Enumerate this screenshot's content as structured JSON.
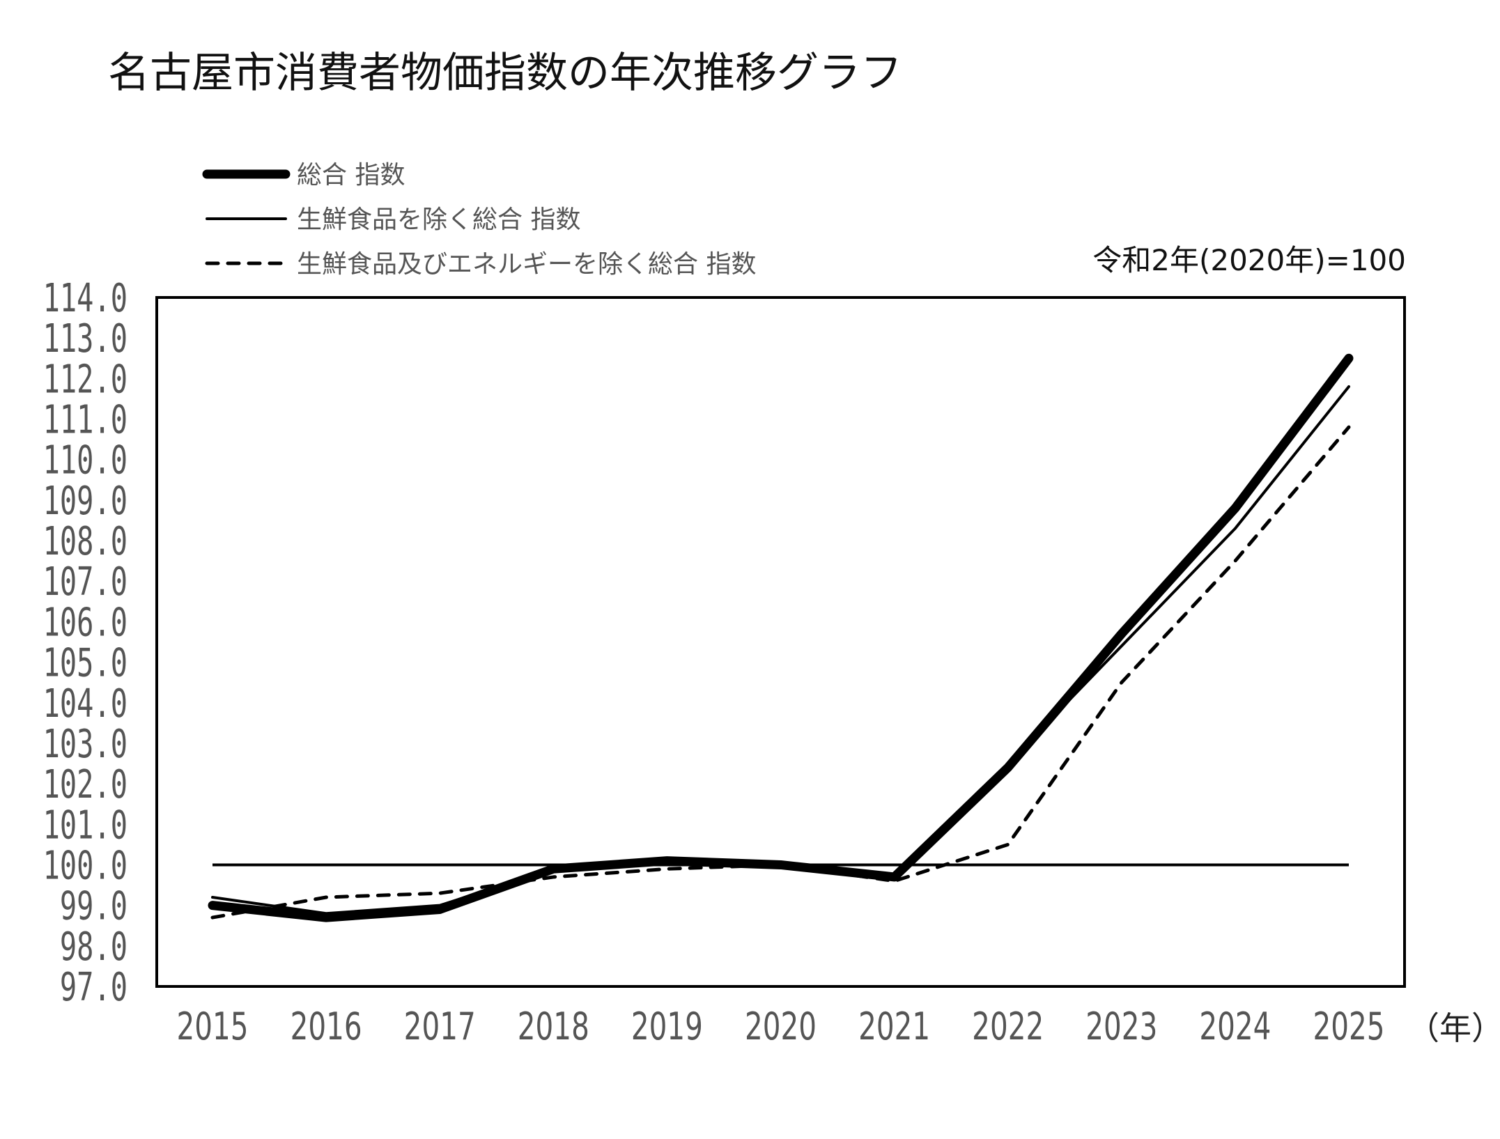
{
  "chart_data": {
    "type": "line",
    "title": "名古屋市消費者物価指数の年次推移グラフ",
    "annotation": "令和2年(2020年)=100",
    "xlabel": "（年）",
    "ylabel": "",
    "categories": [
      "2015",
      "2016",
      "2017",
      "2018",
      "2019",
      "2020",
      "2021",
      "2022",
      "2023",
      "2024",
      "2025"
    ],
    "ylim": [
      97.0,
      114.0
    ],
    "yticks": [
      "114.0",
      "113.0",
      "112.0",
      "111.0",
      "110.0",
      "109.0",
      "108.0",
      "107.0",
      "106.0",
      "105.0",
      "104.0",
      "103.0",
      "102.0",
      "101.0",
      "100.0",
      "99.0",
      "98.0",
      "97.0"
    ],
    "reference_line": 100.0,
    "grid": false,
    "legend_position": "top-left",
    "series": [
      {
        "name": "総合 指数",
        "style": "thick-solid",
        "color": "#000000",
        "values": [
          99.0,
          98.7,
          98.9,
          99.9,
          100.1,
          100.0,
          99.7,
          102.4,
          105.7,
          108.8,
          112.5
        ]
      },
      {
        "name": "生鮮食品を除く総合 指数",
        "style": "thin-solid",
        "color": "#000000",
        "values": [
          99.2,
          98.8,
          99.0,
          99.9,
          100.1,
          100.0,
          99.7,
          102.5,
          105.4,
          108.3,
          111.8
        ]
      },
      {
        "name": "生鮮食品及びエネルギーを除く総合 指数",
        "style": "dashed",
        "color": "#000000",
        "values": [
          98.7,
          99.2,
          99.3,
          99.7,
          99.9,
          100.0,
          99.6,
          100.5,
          104.5,
          107.5,
          110.8
        ]
      }
    ]
  }
}
